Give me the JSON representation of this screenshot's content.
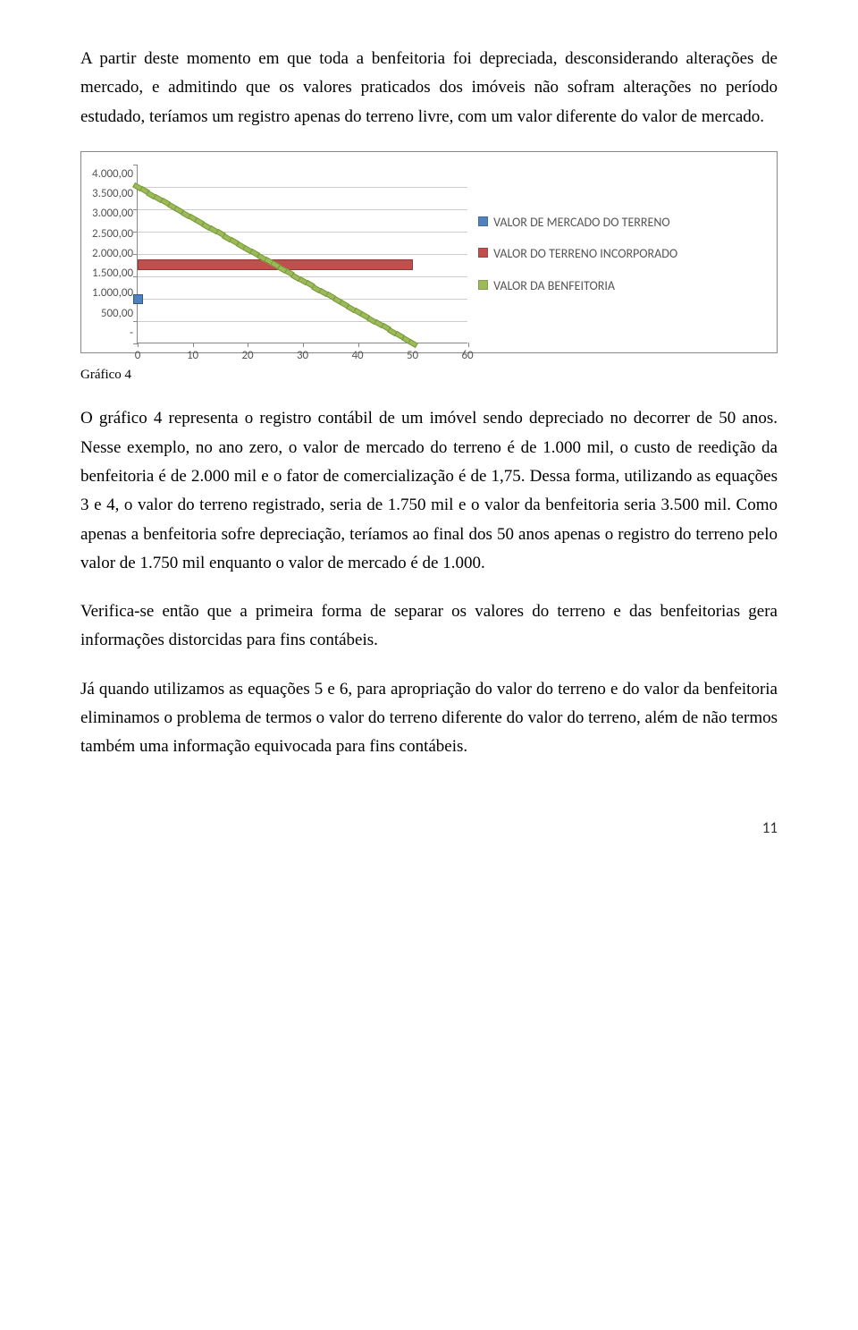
{
  "paragraphs": {
    "p1": "A partir deste momento em que toda a benfeitoria foi depreciada, desconsiderando alterações de mercado, e admitindo que os valores praticados dos imóveis não sofram alterações no período estudado, teríamos um registro apenas do terreno livre, com um valor diferente do valor de mercado.",
    "p2": "O gráfico 4 representa o registro contábil de um imóvel sendo depreciado no decorrer de 50 anos. Nesse exemplo, no ano zero, o valor de mercado do terreno é de 1.000 mil, o custo de reedição da benfeitoria é de 2.000 mil e o fator de comercialização é de 1,75. Dessa forma, utilizando as equações 3 e 4, o valor do terreno registrado, seria de 1.750 mil e o valor da benfeitoria seria 3.500 mil. Como apenas a benfeitoria sofre depreciação, teríamos ao final dos 50 anos apenas o registro do terreno pelo valor de 1.750 mil enquanto o valor de mercado é de 1.000.",
    "p3": "Verifica-se então que a primeira forma de separar os valores do terreno e das benfeitorias gera informações distorcidas para fins contábeis.",
    "p4": "Já quando utilizamos as equações 5 e 6, para apropriação do valor do terreno e do valor da benfeitoria eliminamos o problema de termos o valor do terreno diferente do valor do terreno, além de não termos também uma informação equivocada para fins contábeis."
  },
  "chart": {
    "type": "line",
    "caption": "Gráfico 4",
    "y_ticks": [
      "4.000,00",
      "3.500,00",
      "3.000,00",
      "2.500,00",
      "2.000,00",
      "1.500,00",
      "1.000,00",
      "500,00",
      "-"
    ],
    "x_ticks": [
      "0",
      "10",
      "20",
      "30",
      "40",
      "50",
      "60"
    ],
    "xlim": [
      0,
      60
    ],
    "ylim": [
      0,
      4000
    ],
    "grid_color": "#cccccc",
    "axis_color": "#888888",
    "label_fontsize": 13,
    "label_color": "#555555",
    "background_color": "#ffffff",
    "series": [
      {
        "name": "VALOR DE MERCADO DO TERRENO",
        "color": "#4f81bd",
        "marker": "square",
        "points": [
          [
            0,
            1000
          ]
        ]
      },
      {
        "name": "VALOR DO TERRENO INCORPORADO",
        "color": "#c0504d",
        "points": [
          [
            0,
            1750
          ],
          [
            50,
            1750
          ]
        ]
      },
      {
        "name": "VALOR DA BENFEITORIA",
        "color": "#9bbb59",
        "style": "dashed-squares",
        "points": [
          [
            0,
            3500
          ],
          [
            50,
            0
          ]
        ]
      }
    ]
  },
  "page_number": "11"
}
